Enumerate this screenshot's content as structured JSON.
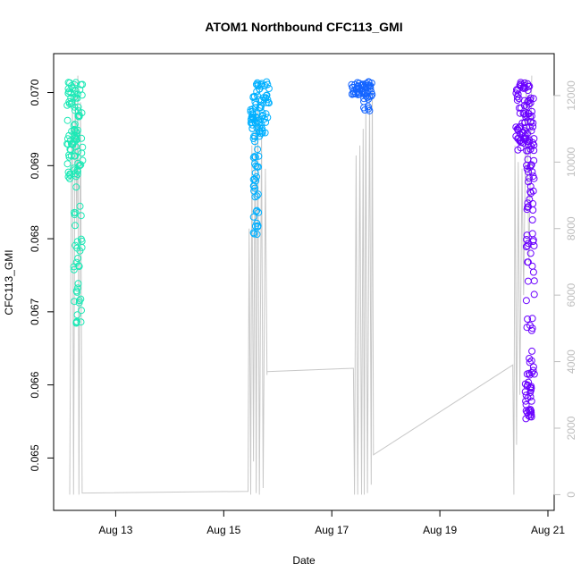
{
  "chart_data": {
    "type": "scatter",
    "title": "ATOM1 Northbound CFC113_GMI",
    "xlabel": "Date",
    "ylabel": "CFC113_GMI",
    "x_axis": {
      "range_days": [
        12.05,
        21.0
      ],
      "ticks": [
        {
          "day": 13,
          "label": "Aug 13"
        },
        {
          "day": 15,
          "label": "Aug 15"
        },
        {
          "day": 17,
          "label": "Aug 17"
        },
        {
          "day": 19,
          "label": "Aug 19"
        },
        {
          "day": 21,
          "label": "Aug 21"
        }
      ]
    },
    "y_axis_left": {
      "range": [
        0.06443,
        0.0703
      ],
      "ticks": [
        "0.065",
        "0.066",
        "0.067",
        "0.068",
        "0.069",
        "0.070"
      ]
    },
    "y_axis_right": {
      "range": [
        -150,
        12750
      ],
      "color": "#bdbdbd",
      "ticks": [
        "0",
        "2000",
        "4000",
        "6000",
        "8000",
        "10000",
        "12000"
      ]
    },
    "grid": false,
    "legend": "none",
    "secondary_line": {
      "color": "#c8c8c8",
      "points": [
        [
          12.15,
          0
        ],
        [
          12.18,
          10000
        ],
        [
          12.2,
          11500
        ],
        [
          12.22,
          0
        ],
        [
          12.25,
          12400
        ],
        [
          12.28,
          8000
        ],
        [
          12.3,
          12600
        ],
        [
          12.32,
          0
        ],
        [
          12.35,
          11800
        ],
        [
          12.38,
          50
        ],
        [
          15.45,
          100
        ],
        [
          15.47,
          8000
        ],
        [
          15.5,
          0
        ],
        [
          15.52,
          10500
        ],
        [
          15.55,
          1000
        ],
        [
          15.58,
          11500
        ],
        [
          15.6,
          50
        ],
        [
          15.63,
          12000
        ],
        [
          15.66,
          0
        ],
        [
          15.7,
          10800
        ],
        [
          15.73,
          200
        ],
        [
          15.77,
          9800
        ],
        [
          15.8,
          3600
        ],
        [
          15.8,
          3700
        ],
        [
          17.4,
          3800
        ],
        [
          17.42,
          0
        ],
        [
          17.45,
          10200
        ],
        [
          17.48,
          0
        ],
        [
          17.52,
          10500
        ],
        [
          17.55,
          0
        ],
        [
          17.58,
          11000
        ],
        [
          17.6,
          0
        ],
        [
          17.63,
          11500
        ],
        [
          17.66,
          50
        ],
        [
          17.7,
          12000
        ],
        [
          17.73,
          300
        ],
        [
          17.75,
          12300
        ],
        [
          17.77,
          1200
        ],
        [
          20.35,
          3900
        ],
        [
          20.37,
          0
        ],
        [
          20.39,
          10500
        ],
        [
          20.42,
          1500
        ],
        [
          20.45,
          10000
        ],
        [
          20.48,
          3000
        ],
        [
          20.52,
          9800
        ],
        [
          20.55,
          6000
        ],
        [
          20.6,
          12500
        ],
        [
          20.65,
          7000
        ],
        [
          20.7,
          12600
        ]
      ]
    },
    "series": [
      {
        "color": "#1de9b6",
        "clusters": [
          {
            "x": [
              12.1,
              12.4
            ],
            "y": [
              0.06882,
              0.07015
            ],
            "count": 90
          },
          {
            "x": [
              12.22,
              12.38
            ],
            "y": [
              0.0668,
              0.0689
            ],
            "count": 35
          }
        ]
      },
      {
        "color": "#00b0ff",
        "clusters": [
          {
            "x": [
              15.5,
              15.85
            ],
            "y": [
              0.0694,
              0.07015
            ],
            "count": 80
          },
          {
            "x": [
              15.55,
              15.65
            ],
            "y": [
              0.06805,
              0.0694
            ],
            "count": 35
          }
        ]
      },
      {
        "color": "#1565ff",
        "clusters": [
          {
            "x": [
              17.35,
              17.75
            ],
            "y": [
              0.06995,
              0.07015
            ],
            "count": 50
          },
          {
            "x": [
              17.58,
              17.7
            ],
            "y": [
              0.06975,
              0.06995
            ],
            "count": 10
          }
        ]
      },
      {
        "color": "#6a00ff",
        "clusters": [
          {
            "x": [
              20.4,
              20.75
            ],
            "y": [
              0.0692,
              0.07015
            ],
            "count": 90
          },
          {
            "x": [
              20.6,
              20.75
            ],
            "y": [
              0.0661,
              0.0692
            ],
            "count": 60
          },
          {
            "x": [
              20.58,
              20.7
            ],
            "y": [
              0.0655,
              0.0661
            ],
            "count": 30
          }
        ]
      }
    ]
  }
}
